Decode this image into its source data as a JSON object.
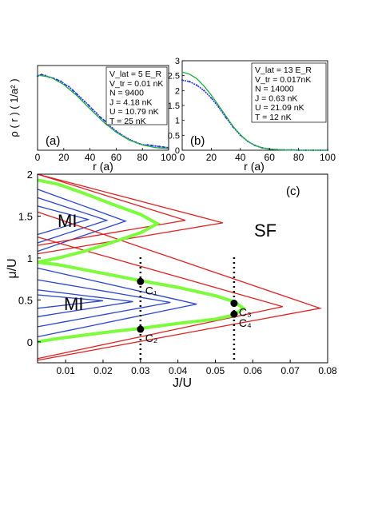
{
  "chart_data": [
    {
      "type": "line",
      "panel_label": "(a)",
      "xlabel": "r (a)",
      "ylabel": "ρ ( r ) ( 1/a² )",
      "xlim": [
        0,
        100
      ],
      "ylim": [
        0,
        1.6
      ],
      "xticks": [
        "0",
        "20",
        "40",
        "60",
        "80",
        "100"
      ],
      "series": [
        {
          "name": "data",
          "color": "#2233dd",
          "x": [
            0,
            3,
            6,
            9,
            12,
            15,
            18,
            21,
            24,
            27,
            30,
            33,
            36,
            39,
            42,
            45,
            48,
            51,
            54,
            57,
            60,
            63,
            66,
            69,
            72,
            75,
            78,
            81,
            84,
            87,
            90,
            93,
            96,
            99
          ],
          "y": [
            1.4,
            1.43,
            1.41,
            1.38,
            1.36,
            1.33,
            1.3,
            1.24,
            1.2,
            1.13,
            1.06,
            0.99,
            0.92,
            0.85,
            0.77,
            0.7,
            0.62,
            0.56,
            0.49,
            0.42,
            0.36,
            0.31,
            0.26,
            0.22,
            0.18,
            0.15,
            0.12,
            0.1,
            0.1,
            0.09,
            0.08,
            0.07,
            0.06,
            0.05
          ]
        },
        {
          "name": "fit",
          "color": "#22aa44",
          "x": [
            0,
            10,
            20,
            30,
            40,
            50,
            60,
            70,
            80,
            90,
            100
          ],
          "y": [
            1.42,
            1.38,
            1.24,
            1.03,
            0.78,
            0.54,
            0.34,
            0.19,
            0.1,
            0.05,
            0.03
          ]
        }
      ],
      "annotation": [
        "V_lat = 5 E_R",
        "V_tr = 0.01 nK",
        "N = 9400",
        "J = 4.18 nK",
        "U = 10.79 nK",
        "T = 25 nK"
      ],
      "legend_position": "top-right"
    },
    {
      "type": "line",
      "panel_label": "(b)",
      "xlabel": "r (a)",
      "xlim": [
        0,
        100
      ],
      "ylim": [
        0,
        3
      ],
      "yticks": [
        "0",
        "0.5",
        "1",
        "1.5",
        "2",
        "2.5",
        "3"
      ],
      "xticks": [
        "0",
        "20",
        "40",
        "60",
        "80",
        "100"
      ],
      "series": [
        {
          "name": "data",
          "color": "#2233dd",
          "x": [
            0,
            5,
            10,
            15,
            20,
            25,
            30,
            35,
            40,
            45,
            50,
            55,
            60,
            65,
            70,
            75,
            80,
            85,
            90,
            95,
            100
          ],
          "y": [
            2.35,
            2.3,
            2.18,
            2.0,
            1.75,
            1.45,
            1.1,
            0.78,
            0.5,
            0.3,
            0.16,
            0.08,
            0.04,
            0.02,
            0.01,
            0.01,
            0.0,
            0.0,
            0.0,
            0.0,
            0.0
          ]
        },
        {
          "name": "fit",
          "color": "#22aa44",
          "x": [
            0,
            5,
            10,
            15,
            20,
            25,
            30,
            35,
            40,
            45,
            50,
            55,
            60,
            65,
            70,
            80,
            90,
            100
          ],
          "y": [
            2.62,
            2.55,
            2.4,
            2.15,
            1.85,
            1.5,
            1.15,
            0.8,
            0.52,
            0.3,
            0.16,
            0.08,
            0.04,
            0.02,
            0.01,
            0.0,
            0.0,
            0.0
          ]
        }
      ],
      "annotation": [
        "V_lat = 13 E_R",
        "V_tr = 0.017nK",
        "N = 14000",
        "J = 0.63 nK",
        "U = 21.09 nK",
        "T = 12 nK"
      ],
      "legend_position": "top-right"
    },
    {
      "type": "line",
      "panel_label": "(c)",
      "xlabel": "J/U",
      "ylabel": "μ/U",
      "xlim": [
        0.0025,
        0.08
      ],
      "ylim": [
        -0.25,
        2
      ],
      "xticks": [
        "0.01",
        "0.02",
        "0.03",
        "0.04",
        "0.05",
        "0.06",
        "0.07",
        "0.08"
      ],
      "yticks": [
        "0",
        "0.5",
        "1",
        "1.5",
        "2"
      ],
      "region_labels": [
        "MI",
        "MI",
        "SF"
      ],
      "points": [
        {
          "label": "C₁",
          "x": 0.03,
          "y": 0.72
        },
        {
          "label": "C₂",
          "x": 0.03,
          "y": 0.15
        },
        {
          "label": "C₃",
          "x": 0.055,
          "y": 0.46
        },
        {
          "label": "C₄",
          "x": 0.055,
          "y": 0.33
        }
      ],
      "dotted_lines_x": [
        0.03,
        0.055
      ],
      "lobes": [
        {
          "name": "upper lobe boundary",
          "color": "#7cfc3c",
          "x": [
            0.0025,
            0.008,
            0.015,
            0.022,
            0.03,
            0.0345,
            0.03,
            0.022,
            0.015,
            0.008,
            0.0025
          ],
          "y": [
            1.93,
            1.88,
            1.77,
            1.65,
            1.52,
            1.41,
            1.3,
            1.18,
            1.08,
            1.0,
            0.95
          ]
        },
        {
          "name": "lower lobe boundary",
          "color": "#7cfc3c",
          "x": [
            0.0025,
            0.008,
            0.015,
            0.022,
            0.03,
            0.04,
            0.05,
            0.055,
            0.0575,
            0.055,
            0.05,
            0.04,
            0.03,
            0.022,
            0.015,
            0.008,
            0.0025
          ],
          "y": [
            0.95,
            0.92,
            0.86,
            0.8,
            0.73,
            0.65,
            0.55,
            0.48,
            0.4,
            0.32,
            0.27,
            0.22,
            0.16,
            0.12,
            0.08,
            0.04,
            0.0
          ]
        }
      ]
    }
  ]
}
